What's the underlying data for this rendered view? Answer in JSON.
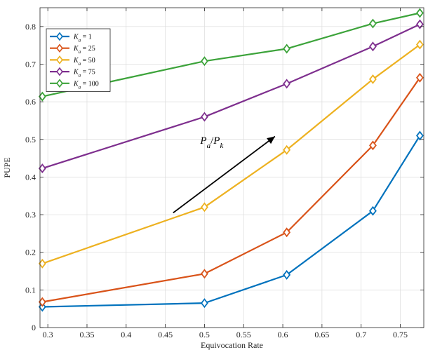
{
  "chart_data": {
    "type": "line",
    "xlabel": "Equivocation Rate",
    "ylabel": "PUPE",
    "xlim": [
      0.29,
      0.78
    ],
    "ylim": [
      0,
      0.85
    ],
    "xticks": [
      0.3,
      0.35,
      0.4,
      0.45,
      0.5,
      0.55,
      0.6,
      0.65,
      0.7,
      0.75
    ],
    "xtick_labels": [
      "0.3",
      "0.35",
      "0.4",
      "0.45",
      "0.5",
      "0.55",
      "0.6",
      "0.65",
      "0.7",
      "0.75"
    ],
    "yticks": [
      0,
      0.1,
      0.2,
      0.3,
      0.4,
      0.5,
      0.6,
      0.7,
      0.8
    ],
    "ytick_labels": [
      "0",
      "0.1",
      "0.2",
      "0.3",
      "0.4",
      "0.5",
      "0.6",
      "0.7",
      "0.8"
    ],
    "grid": true,
    "legend_position": "top-left",
    "marker": "diamond",
    "series": [
      {
        "name": "K_a = 1",
        "legend_label": "Ka = 1",
        "color": "#0072BD",
        "x": [
          0.293,
          0.5,
          0.605,
          0.715,
          0.775
        ],
        "y": [
          0.055,
          0.065,
          0.14,
          0.31,
          0.51
        ]
      },
      {
        "name": "K_a = 25",
        "legend_label": "Ka = 25",
        "color": "#D95319",
        "x": [
          0.293,
          0.5,
          0.605,
          0.715,
          0.775
        ],
        "y": [
          0.068,
          0.143,
          0.253,
          0.484,
          0.664
        ]
      },
      {
        "name": "K_a = 50",
        "legend_label": "Ka = 50",
        "color": "#EDB120",
        "x": [
          0.293,
          0.5,
          0.605,
          0.715,
          0.775
        ],
        "y": [
          0.17,
          0.32,
          0.472,
          0.66,
          0.752
        ]
      },
      {
        "name": "K_a = 75",
        "legend_label": "Ka = 75",
        "color": "#7E2F8E",
        "x": [
          0.293,
          0.5,
          0.605,
          0.715,
          0.775
        ],
        "y": [
          0.423,
          0.56,
          0.648,
          0.747,
          0.806
        ]
      },
      {
        "name": "K_a = 100",
        "legend_label": "Ka = 100",
        "color": "#3CA33A",
        "x": [
          0.293,
          0.5,
          0.605,
          0.715,
          0.775
        ],
        "y": [
          0.614,
          0.708,
          0.741,
          0.808,
          0.836
        ]
      }
    ],
    "annotation": {
      "text": "Pa/Pk",
      "arrow_from": [
        0.46,
        0.305
      ],
      "arrow_to": [
        0.59,
        0.508
      ],
      "text_at": [
        0.5,
        0.5
      ]
    }
  }
}
